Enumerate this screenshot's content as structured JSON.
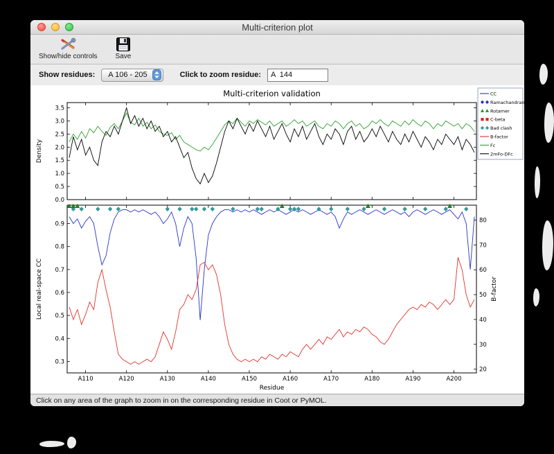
{
  "window": {
    "title": "Multi-criterion plot"
  },
  "toolbar": {
    "show_hide_label": "Show/hide controls",
    "save_label": "Save"
  },
  "controls": {
    "show_residues_label": "Show residues:",
    "residue_range_value": "A 106 - 205",
    "zoom_label": "Click to zoom residue:",
    "zoom_value": "A  144"
  },
  "status_bar": {
    "text": "Click on any area of the graph to zoom in on the corresponding residue in Coot or PyMOL."
  },
  "chart_data": {
    "type": "line",
    "title": "Multi-criterion validation",
    "x": {
      "label": "Residue",
      "start": 106,
      "end": 205,
      "xlim": [
        105.5,
        205.5
      ],
      "ticks": [
        110,
        120,
        130,
        140,
        150,
        160,
        170,
        180,
        190,
        200
      ],
      "tick_labels": [
        "A110",
        "A120",
        "A130",
        "A140",
        "A150",
        "A160",
        "A170",
        "A180",
        "A190",
        "A200"
      ]
    },
    "top_plot": {
      "ylabel": "Density",
      "ylim": [
        0,
        3.7
      ],
      "yticks": [
        0.0,
        0.5,
        1.0,
        1.5,
        2.0,
        2.5,
        3.0,
        3.5
      ],
      "series": [
        {
          "name": "Fc",
          "color": "#2f9e2f",
          "values": [
            2.2,
            2.5,
            2.3,
            2.6,
            2.35,
            2.7,
            2.55,
            2.8,
            2.6,
            2.45,
            2.75,
            2.9,
            2.7,
            3.0,
            3.3,
            2.95,
            2.85,
            3.1,
            2.8,
            2.95,
            2.7,
            2.85,
            2.6,
            2.5,
            2.45,
            2.55,
            2.3,
            2.45,
            2.2,
            2.1,
            2.0,
            1.9,
            1.85,
            2.0,
            1.9,
            2.1,
            2.35,
            2.6,
            2.85,
            3.0,
            2.9,
            3.1,
            2.95,
            2.8,
            3.0,
            2.9,
            3.05,
            2.95,
            2.85,
            3.0,
            2.8,
            2.9,
            3.0,
            2.8,
            2.9,
            3.05,
            2.9,
            3.0,
            2.8,
            2.9,
            3.0,
            2.8,
            2.7,
            2.9,
            2.8,
            3.0,
            2.9,
            2.7,
            2.9,
            3.0,
            2.8,
            2.9,
            2.7,
            2.8,
            3.0,
            2.9,
            3.05,
            2.9,
            2.8,
            3.0,
            2.9,
            2.8,
            3.0,
            2.85,
            3.05,
            2.9,
            2.8,
            3.0,
            2.9,
            2.7,
            2.9,
            2.8,
            3.0,
            2.9,
            2.8,
            2.9,
            2.7,
            2.9,
            2.8,
            2.6
          ]
        },
        {
          "name": "2mFo-DFc",
          "color": "#000000",
          "values": [
            1.6,
            2.4,
            1.9,
            2.3,
            1.7,
            2.0,
            1.5,
            1.3,
            2.2,
            2.6,
            2.4,
            2.8,
            2.5,
            3.0,
            3.5,
            2.9,
            3.2,
            2.8,
            3.1,
            2.7,
            3.0,
            2.6,
            2.8,
            2.4,
            2.6,
            2.2,
            2.4,
            2.0,
            1.6,
            1.8,
            1.2,
            0.8,
            0.6,
            1.0,
            0.65,
            0.9,
            1.4,
            2.0,
            2.6,
            3.0,
            2.7,
            3.1,
            2.8,
            2.5,
            2.9,
            2.6,
            3.0,
            2.7,
            2.4,
            2.8,
            2.3,
            2.6,
            2.9,
            2.5,
            2.2,
            2.7,
            2.4,
            2.8,
            2.3,
            2.6,
            2.9,
            2.4,
            2.1,
            2.5,
            2.3,
            2.7,
            2.5,
            2.1,
            2.6,
            2.8,
            2.3,
            2.6,
            2.2,
            2.4,
            2.7,
            2.4,
            2.8,
            2.5,
            2.2,
            2.6,
            2.3,
            2.1,
            2.5,
            2.2,
            2.6,
            2.3,
            2.0,
            2.4,
            2.2,
            1.9,
            2.3,
            2.1,
            2.5,
            2.3,
            2.1,
            2.4,
            1.9,
            2.3,
            2.1,
            1.8
          ]
        }
      ]
    },
    "bottom_plot": {
      "ylabel_left": "Local real-space CC",
      "ylabel_left_color": "#2633cc",
      "ylim_left": [
        0.25,
        0.98
      ],
      "yticks_left": [
        0.3,
        0.4,
        0.5,
        0.6,
        0.7,
        0.8,
        0.9
      ],
      "ylabel_right": "B-factor",
      "ylabel_right_color": "#e03228",
      "ylim_right": [
        18.5,
        86
      ],
      "yticks_right": [
        20,
        30,
        40,
        50,
        60,
        70,
        80
      ],
      "series": [
        {
          "name": "CC",
          "axis": "left",
          "color": "#2633cc",
          "values": [
            0.93,
            0.9,
            0.92,
            0.88,
            0.91,
            0.93,
            0.9,
            0.8,
            0.72,
            0.76,
            0.86,
            0.92,
            0.95,
            0.96,
            0.96,
            0.95,
            0.96,
            0.95,
            0.96,
            0.95,
            0.94,
            0.95,
            0.93,
            0.9,
            0.92,
            0.95,
            0.9,
            0.8,
            0.88,
            0.93,
            0.9,
            0.75,
            0.48,
            0.7,
            0.85,
            0.9,
            0.93,
            0.95,
            0.96,
            0.96,
            0.95,
            0.96,
            0.95,
            0.96,
            0.95,
            0.96,
            0.95,
            0.94,
            0.95,
            0.96,
            0.95,
            0.96,
            0.95,
            0.94,
            0.95,
            0.96,
            0.95,
            0.96,
            0.95,
            0.94,
            0.95,
            0.96,
            0.95,
            0.94,
            0.95,
            0.93,
            0.88,
            0.92,
            0.95,
            0.94,
            0.95,
            0.96,
            0.95,
            0.94,
            0.95,
            0.96,
            0.95,
            0.94,
            0.95,
            0.96,
            0.95,
            0.94,
            0.95,
            0.93,
            0.95,
            0.96,
            0.95,
            0.94,
            0.95,
            0.96,
            0.95,
            0.94,
            0.95,
            0.96,
            0.94,
            0.92,
            0.95,
            0.9,
            0.7,
            0.93
          ]
        },
        {
          "name": "B-factor",
          "axis": "right",
          "color": "#e03228",
          "values": [
            45,
            40,
            44,
            38,
            42,
            47,
            44,
            55,
            60,
            52,
            45,
            35,
            26,
            24,
            23,
            22,
            23,
            22,
            23,
            24,
            23,
            25,
            30,
            35,
            32,
            28,
            35,
            44,
            46,
            50,
            48,
            52,
            62,
            63,
            60,
            62,
            58,
            50,
            38,
            30,
            26,
            24,
            23,
            24,
            23,
            24,
            23,
            25,
            24,
            26,
            25,
            24,
            26,
            25,
            27,
            26,
            25,
            28,
            30,
            28,
            30,
            32,
            30,
            33,
            32,
            34,
            36,
            33,
            35,
            34,
            36,
            35,
            37,
            36,
            34,
            33,
            31,
            30,
            32,
            35,
            38,
            40,
            42,
            44,
            45,
            44,
            46,
            45,
            47,
            46,
            44,
            46,
            48,
            46,
            48,
            65,
            60,
            50,
            45,
            48
          ]
        }
      ],
      "markers": [
        {
          "name": "Bad clash",
          "shape": "diamond",
          "color": "#2f9e9e",
          "y": 0.963,
          "residues": [
            107,
            109,
            113,
            116,
            118,
            130,
            133,
            136,
            137,
            139,
            141,
            146,
            152,
            153,
            157,
            160,
            161,
            162,
            167,
            170,
            174,
            178,
            183,
            188,
            193,
            198,
            203
          ]
        },
        {
          "name": "Rotamer",
          "shape": "triangle",
          "color": "#1f8c1f",
          "y": 0.976,
          "residues": [
            106,
            107,
            108,
            158,
            179,
            199
          ]
        }
      ]
    },
    "legend": {
      "entries": [
        {
          "label": "CC",
          "type": "line",
          "color": "#2633cc"
        },
        {
          "label": "Ramachandran",
          "type": "circle",
          "color": "#2633cc"
        },
        {
          "label": "Rotamer",
          "type": "triangle",
          "color": "#1f8c1f"
        },
        {
          "label": "C-beta",
          "type": "square",
          "color": "#cc2a1e"
        },
        {
          "label": "Bad clash",
          "type": "diamond",
          "color": "#2f9e9e"
        },
        {
          "label": "B-factor",
          "type": "line",
          "color": "#e03228"
        },
        {
          "label": "Fc",
          "type": "line",
          "color": "#2f9e2f"
        },
        {
          "label": "2mFo-DFc",
          "type": "line",
          "color": "#000000"
        }
      ]
    }
  }
}
